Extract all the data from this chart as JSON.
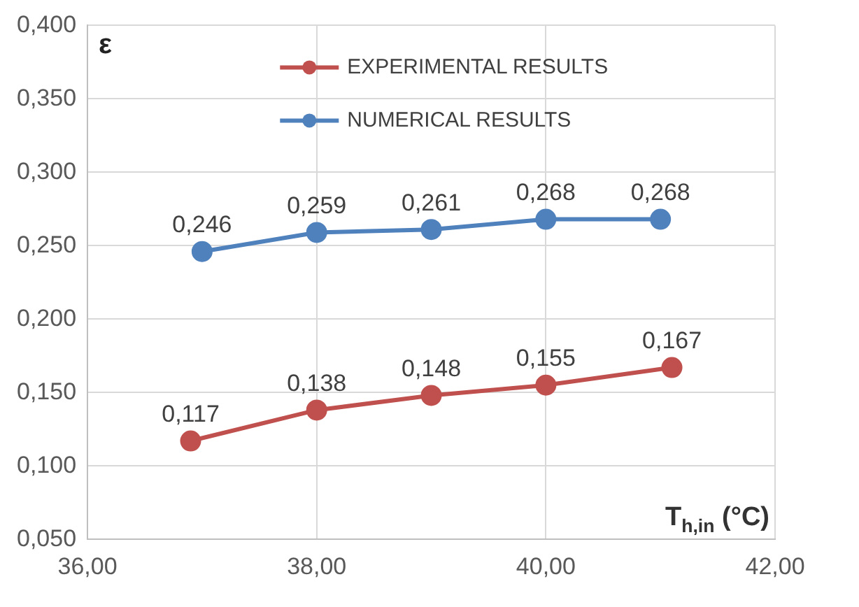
{
  "chart_data": {
    "type": "line",
    "xlabel": "T$_{h,in}$ (°C)",
    "ylabel": "ε",
    "series": [
      {
        "name": "EXPERIMENTAL RESULTS",
        "color": "#c0504d",
        "x": [
          36.9,
          38,
          39,
          40,
          41.1
        ],
        "values": [
          0.117,
          0.138,
          0.148,
          0.155,
          0.167
        ],
        "value_labels": [
          "0,117",
          "0,138",
          "0,148",
          "0,155",
          "0,167"
        ]
      },
      {
        "name": "NUMERICAL RESULTS",
        "color": "#4f81bd",
        "x": [
          37,
          38,
          39,
          40,
          41
        ],
        "values": [
          0.246,
          0.259,
          0.261,
          0.268,
          0.268
        ],
        "value_labels": [
          "0,246",
          "0,259",
          "0,261",
          "0,268",
          "0,268"
        ]
      }
    ],
    "xlim": [
      36,
      42
    ],
    "xticks": [
      {
        "value": 36,
        "label": "36,00"
      },
      {
        "value": 38,
        "label": "38,00"
      },
      {
        "value": 40,
        "label": "40,00"
      },
      {
        "value": 42,
        "label": "42,00"
      }
    ],
    "ylim": [
      0.05,
      0.4
    ],
    "yticks": [
      {
        "value": 0.05,
        "label": "0,050"
      },
      {
        "value": 0.1,
        "label": "0,100"
      },
      {
        "value": 0.15,
        "label": "0,150"
      },
      {
        "value": 0.2,
        "label": "0,200"
      },
      {
        "value": 0.25,
        "label": "0,250"
      },
      {
        "value": 0.3,
        "label": "0,300"
      },
      {
        "value": 0.35,
        "label": "0,350"
      },
      {
        "value": 0.4,
        "label": "0,400"
      }
    ],
    "grid": true,
    "legend": "top",
    "marker": "circle",
    "line_style": "solid"
  }
}
